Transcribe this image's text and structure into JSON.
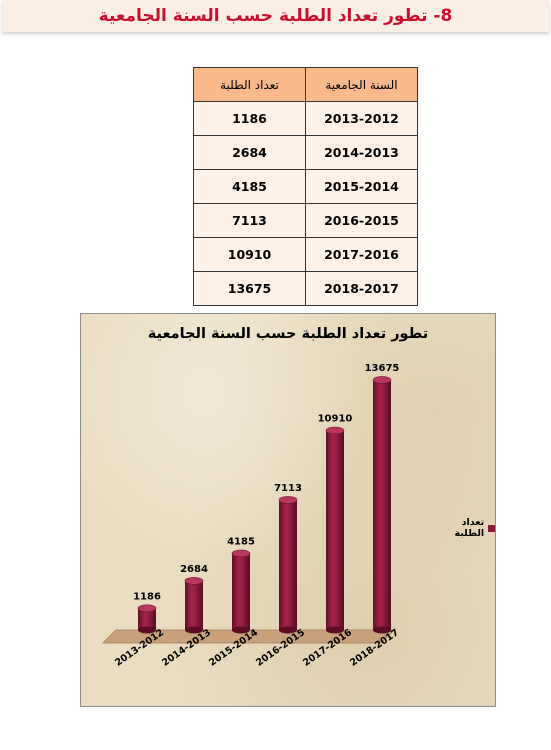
{
  "header": {
    "title": "8- تطور تعداد الطلبة حسب السنة الجامعية"
  },
  "table": {
    "headers": [
      "السنة الجامعية",
      "تعداد الطلبة"
    ],
    "rows": [
      [
        "2013-2012",
        "1186"
      ],
      [
        "2014-2013",
        "2684"
      ],
      [
        "2015-2014",
        "4185"
      ],
      [
        "2016-2015",
        "7113"
      ],
      [
        "2017-2016",
        "10910"
      ],
      [
        "2018-2017",
        "13675"
      ]
    ]
  },
  "chart_data": {
    "type": "bar",
    "title": "تطور تعداد الطلبة حسب السنة الجامعية",
    "categories": [
      "2013-2012",
      "2014-2013",
      "2015-2014",
      "2016-2015",
      "2017-2016",
      "2018-2017"
    ],
    "series": [
      {
        "name": "تعداد الطلبة",
        "values": [
          1186,
          2684,
          4185,
          7113,
          10910,
          13675
        ]
      }
    ],
    "xlabel": "",
    "ylabel": "",
    "ylim": [
      0,
      14000
    ],
    "grid": false,
    "legend": "right",
    "colors": {
      "bar": "#8b1a3a",
      "floor": "#c9a07c"
    }
  }
}
